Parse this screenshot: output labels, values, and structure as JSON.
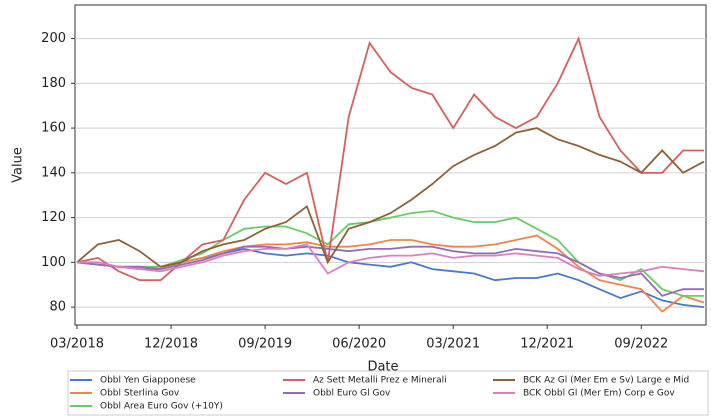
{
  "chart_data": {
    "type": "line",
    "x_label": "Date",
    "y_label": "Value",
    "x": [
      "2018-03",
      "2018-05",
      "2018-07",
      "2018-09",
      "2018-11",
      "2019-01",
      "2019-03",
      "2019-05",
      "2019-07",
      "2019-09",
      "2019-11",
      "2020-01",
      "2020-03",
      "2020-05",
      "2020-07",
      "2020-09",
      "2020-11",
      "2021-01",
      "2021-03",
      "2021-05",
      "2021-07",
      "2021-09",
      "2021-11",
      "2022-01",
      "2022-03",
      "2022-05",
      "2022-07",
      "2022-09",
      "2022-11",
      "2023-01",
      "2023-03"
    ],
    "xlim": [
      "2018-03",
      "2023-03"
    ],
    "xticks": [
      {
        "value": "2018-03",
        "label": "03/2018"
      },
      {
        "value": "2018-12",
        "label": "12/2018"
      },
      {
        "value": "2019-09",
        "label": "09/2019"
      },
      {
        "value": "2020-06",
        "label": "06/2020"
      },
      {
        "value": "2021-03",
        "label": "03/2021"
      },
      {
        "value": "2021-12",
        "label": "12/2021"
      },
      {
        "value": "2022-09",
        "label": "09/2022"
      }
    ],
    "ylim": [
      72,
      215
    ],
    "yticks": [
      80,
      100,
      120,
      140,
      160,
      180,
      200
    ],
    "grid": true,
    "series": [
      {
        "name": "Obbl Yen Giapponese",
        "color": "#4878d0",
        "values": [
          100,
          99,
          98,
          97,
          97,
          100,
          102,
          104,
          106,
          104,
          103,
          104,
          103,
          100,
          99,
          98,
          100,
          97,
          96,
          95,
          92,
          93,
          93,
          95,
          92,
          88,
          84,
          87,
          83,
          81,
          80
        ]
      },
      {
        "name": "Obbl Sterlina Gov",
        "color": "#ee854a",
        "values": [
          100,
          99,
          98,
          98,
          97,
          100,
          102,
          105,
          107,
          108,
          108,
          109,
          107,
          107,
          108,
          110,
          110,
          108,
          107,
          107,
          108,
          110,
          112,
          106,
          98,
          92,
          90,
          88,
          78,
          85,
          82
        ]
      },
      {
        "name": "Obbl Area Euro Gov (+10Y)",
        "color": "#6acc64",
        "values": [
          100,
          99,
          98,
          98,
          98,
          101,
          104,
          110,
          115,
          116,
          116,
          113,
          108,
          117,
          118,
          120,
          122,
          123,
          120,
          118,
          118,
          120,
          115,
          110,
          100,
          95,
          92,
          97,
          88,
          85,
          85
        ]
      },
      {
        "name": "Az Sett Metalli Prez e Minerali",
        "color": "#d65f5f",
        "values": [
          100,
          102,
          96,
          92,
          92,
          100,
          108,
          110,
          128,
          140,
          135,
          140,
          100,
          165,
          198,
          185,
          178,
          175,
          160,
          175,
          165,
          160,
          165,
          180,
          200,
          165,
          150,
          140,
          140,
          150,
          150
        ]
      },
      {
        "name": "Obbl Euro Gl Gov",
        "color": "#956cb4",
        "values": [
          100,
          99,
          98,
          98,
          97,
          99,
          101,
          104,
          107,
          107,
          106,
          107,
          106,
          105,
          106,
          106,
          107,
          107,
          105,
          104,
          104,
          106,
          105,
          104,
          100,
          95,
          93,
          95,
          85,
          88,
          88
        ]
      },
      {
        "name": "BCK Az Gl (Mer Em e Sv) Large e Mid",
        "color": "#8c613c",
        "values": [
          100,
          108,
          110,
          105,
          98,
          100,
          105,
          108,
          110,
          115,
          118,
          125,
          100,
          115,
          118,
          122,
          128,
          135,
          143,
          148,
          152,
          158,
          160,
          155,
          152,
          148,
          145,
          140,
          150,
          140,
          145
        ]
      },
      {
        "name": "BCK Obbl Gl (Mer Em) Corp e Gov",
        "color": "#dc7ec0",
        "values": [
          100,
          100,
          98,
          97,
          96,
          98,
          100,
          103,
          105,
          106,
          106,
          108,
          95,
          100,
          102,
          103,
          103,
          104,
          102,
          103,
          103,
          104,
          103,
          102,
          97,
          94,
          95,
          96,
          98,
          97,
          96
        ]
      }
    ]
  }
}
